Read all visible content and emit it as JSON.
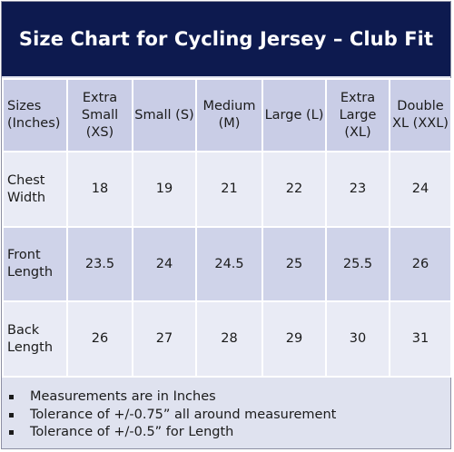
{
  "title": "Size Chart for Cycling Jersey – Club Fit",
  "table": {
    "header": [
      "Sizes (Inches)",
      "Extra Small (XS)",
      "Small (S)",
      "Medium (M)",
      "Large (L)",
      "Extra Large (XL)",
      "Double XL (XXL)"
    ],
    "rows": [
      {
        "label": "Chest Width",
        "values": [
          "18",
          "19",
          "21",
          "22",
          "23",
          "24"
        ]
      },
      {
        "label": "Front Length",
        "values": [
          "23.5",
          "24",
          "24.5",
          "25",
          "25.5",
          "26"
        ]
      },
      {
        "label": "Back Length",
        "values": [
          "26",
          "27",
          "28",
          "29",
          "30",
          "31"
        ]
      }
    ]
  },
  "notes": [
    "Measurements are in Inches",
    "Tolerance of +/-0.75” all around measurement",
    "Tolerance of +/-0.5” for Length"
  ],
  "colors": {
    "title_bg": "#0d1a4f",
    "header_row": "#c9cde6",
    "light_row": "#e9ebf5",
    "dark_row": "#cfd3e9"
  }
}
